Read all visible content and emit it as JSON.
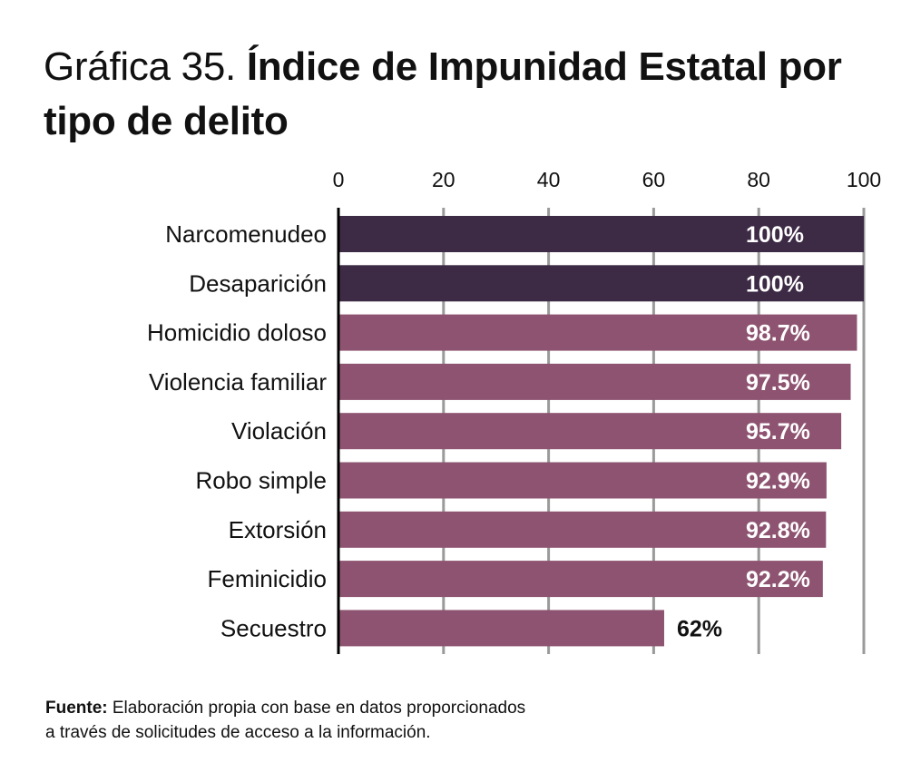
{
  "title": {
    "prefix": "Gráfica 35.",
    "main": "Índice de Impunidad Estatal por tipo de delito"
  },
  "chart_data": {
    "type": "bar",
    "orientation": "horizontal",
    "title": "Gráfica 35. Índice de Impunidad Estatal por tipo de delito",
    "xlabel": "",
    "ylabel": "",
    "xlim": [
      0,
      100
    ],
    "xticks": [
      0,
      20,
      40,
      60,
      80,
      100
    ],
    "xtick_labels": [
      "0",
      "20",
      "40",
      "60",
      "80",
      "100"
    ],
    "grid": true,
    "categories": [
      "Narcomenudeo",
      "Desaparición",
      "Homicidio doloso",
      "Violencia familiar",
      "Violación",
      "Robo simple",
      "Extorsión",
      "Feminicidio",
      "Secuestro"
    ],
    "values": [
      100,
      100,
      98.7,
      97.5,
      95.7,
      92.9,
      92.8,
      92.2,
      62
    ],
    "data_labels": [
      "100%",
      "100%",
      "98.7%",
      "97.5%",
      "95.7%",
      "92.9%",
      "92.8%",
      "92.2%",
      "62%"
    ],
    "bar_colors": [
      "#3d2a45",
      "#3d2a45",
      "#8e5370",
      "#8e5370",
      "#8e5370",
      "#8e5370",
      "#8e5370",
      "#8e5370",
      "#8e5370"
    ],
    "label_colors": [
      "#ffffff",
      "#ffffff",
      "#ffffff",
      "#ffffff",
      "#ffffff",
      "#ffffff",
      "#ffffff",
      "#ffffff",
      "#111111"
    ],
    "label_position": [
      "inside",
      "inside",
      "inside",
      "inside",
      "inside",
      "inside",
      "inside",
      "inside",
      "outside"
    ]
  },
  "source": {
    "label": "Fuente:",
    "text": " Elaboración propia con base en datos proporcionados",
    "text2": "a través de solicitudes de acceso a la información."
  }
}
